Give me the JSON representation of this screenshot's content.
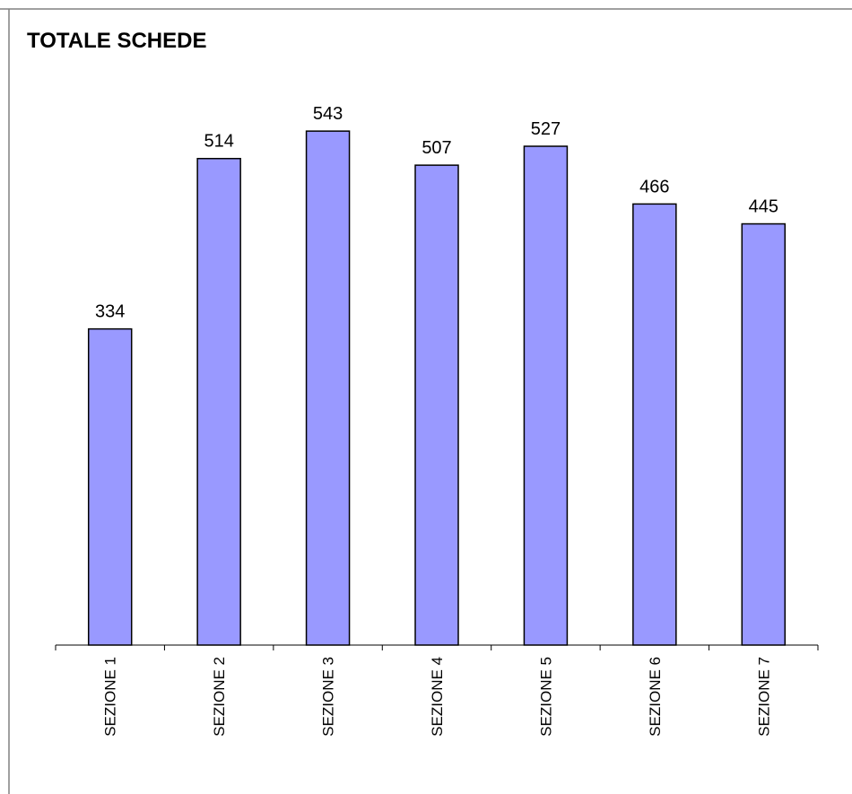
{
  "chart_data": {
    "type": "bar",
    "title": "TOTALE SCHEDE",
    "categories": [
      "SEZIONE 1",
      "SEZIONE 2",
      "SEZIONE 3",
      "SEZIONE 4",
      "SEZIONE 5",
      "SEZIONE 6",
      "SEZIONE 7"
    ],
    "values": [
      334,
      514,
      543,
      507,
      527,
      466,
      445
    ],
    "color": "#9999ff"
  }
}
